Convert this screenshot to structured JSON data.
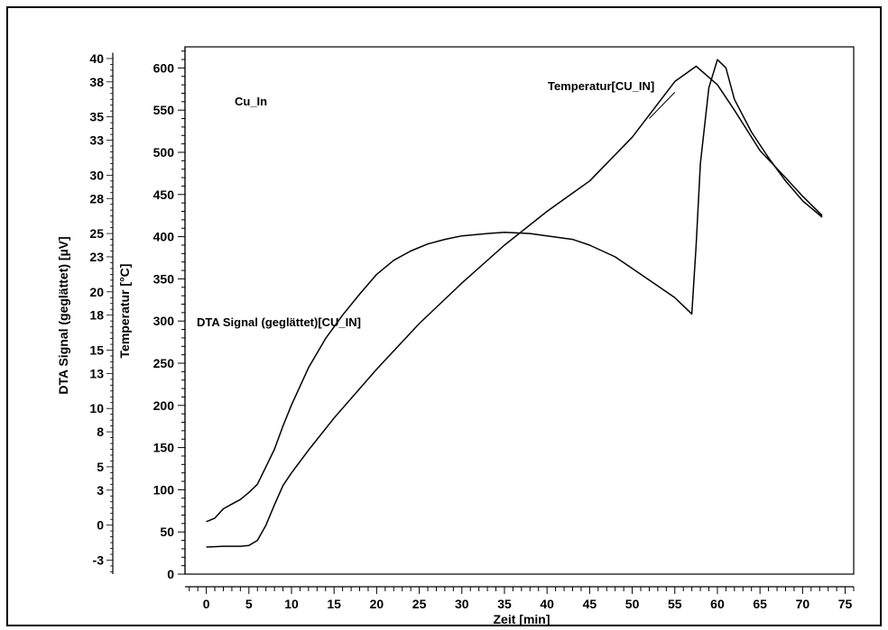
{
  "chart_data": {
    "type": "line",
    "title": "",
    "annotation_sample": "Cu_In",
    "xlabel": "Zeit  [min]",
    "ylabel_left": "DTA Signal (geglättet)  [µV]",
    "ylabel_right": "Temperatur  [°C]",
    "xlim": [
      -2.5,
      76
    ],
    "x_ticks": [
      0,
      5,
      10,
      15,
      20,
      25,
      30,
      35,
      40,
      45,
      50,
      55,
      60,
      65,
      70,
      75
    ],
    "y_temp_lim": [
      0,
      625
    ],
    "y_temp_ticks": [
      0,
      50,
      100,
      150,
      200,
      250,
      300,
      350,
      400,
      450,
      500,
      550,
      600
    ],
    "y_dta_lim": [
      -4.2,
      41
    ],
    "y_dta_ticks": [
      -3,
      0,
      3,
      5,
      8,
      10,
      13,
      15,
      18,
      20,
      23,
      25,
      28,
      30,
      33,
      35,
      38,
      40
    ],
    "grid": false,
    "legend": "none",
    "series": [
      {
        "name": "Temperatur[CU_IN]",
        "axis": "temperature",
        "x": [
          0,
          2,
          4,
          5,
          6,
          7,
          8,
          9,
          10,
          12,
          15,
          20,
          25,
          30,
          35,
          40,
          45,
          50,
          55,
          57.5,
          60,
          62,
          65,
          68,
          70,
          72.3
        ],
        "y": [
          32,
          33,
          33,
          34,
          40,
          58,
          82,
          105,
          120,
          147,
          185,
          243,
          297,
          345,
          390,
          430,
          466,
          518,
          584,
          602,
          580,
          550,
          502,
          470,
          448,
          425
        ]
      },
      {
        "name": "DTA Signal (geglättet)[CU_IN]",
        "axis": "dta",
        "x": [
          0,
          1,
          2,
          3,
          4,
          5,
          6,
          7,
          8,
          9,
          10,
          12,
          14,
          16,
          18,
          20,
          22,
          24,
          26,
          28,
          30,
          33,
          35,
          38,
          40,
          43,
          45,
          48,
          50,
          53,
          55,
          56,
          57,
          57.5,
          58,
          59,
          60,
          61,
          62,
          64,
          66,
          68,
          70,
          72.3
        ],
        "y": [
          0.3,
          0.6,
          1.4,
          1.8,
          2.2,
          2.8,
          3.5,
          5.0,
          6.5,
          8.5,
          10.3,
          13.5,
          16.0,
          18.0,
          19.8,
          21.5,
          22.7,
          23.5,
          24.1,
          24.5,
          24.8,
          25.0,
          25.1,
          25.0,
          24.8,
          24.5,
          24.0,
          23.0,
          22.0,
          20.5,
          19.5,
          18.8,
          18.1,
          24,
          31,
          37.5,
          39.9,
          39.2,
          36.5,
          33.7,
          31.5,
          29.5,
          27.8,
          26.4
        ]
      }
    ]
  }
}
